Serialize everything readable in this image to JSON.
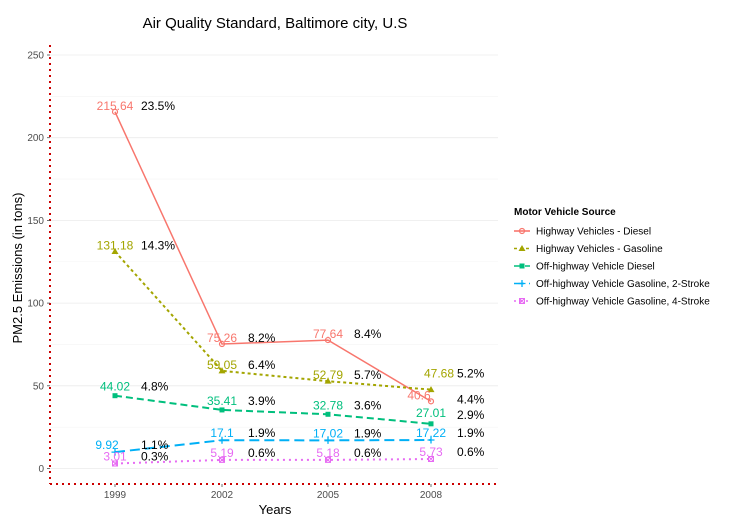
{
  "chart_data": {
    "type": "line",
    "title": "Air Quality Standard, Baltimore city, U.S",
    "xlabel": "Years",
    "ylabel": "PM2.5 Emissions (in tons)",
    "ylim": [
      -10,
      262
    ],
    "yticks": [
      0,
      50,
      100,
      150,
      200,
      250
    ],
    "categories": [
      "1999",
      "2002",
      "2005",
      "2008"
    ],
    "grid": true,
    "legend_title": "Motor Vehicle Source",
    "legend_position": "right",
    "series": [
      {
        "name": "Highway Vehicles - Diesel",
        "color": "#f8766d",
        "dash": "solid",
        "marker": "circle-open",
        "values": [
          215.64,
          75.26,
          77.64,
          40.6
        ],
        "value_labels": [
          "215.64",
          "75.26",
          "77.64",
          "40.6"
        ],
        "pct_labels": [
          "23.5%",
          "8.2%",
          "8.4%",
          "4.4%"
        ]
      },
      {
        "name": "Highway Vehicles - Gasoline",
        "color": "#a3a500",
        "dash": "dotted",
        "marker": "triangle",
        "values": [
          131.18,
          59.05,
          52.79,
          47.68
        ],
        "value_labels": [
          "131.18",
          "59.05",
          "52.79",
          "47.68"
        ],
        "pct_labels": [
          "14.3%",
          "6.4%",
          "5.7%",
          "5.2%"
        ]
      },
      {
        "name": "Off-highway Vehicle Diesel",
        "color": "#00bf7d",
        "dash": "dashed",
        "marker": "square",
        "values": [
          44.02,
          35.41,
          32.78,
          27.01
        ],
        "value_labels": [
          "44.02",
          "35.41",
          "32.78",
          "27.01"
        ],
        "pct_labels": [
          "4.8%",
          "3.9%",
          "3.6%",
          "2.9%"
        ]
      },
      {
        "name": "Off-highway Vehicle Gasoline, 2-Stroke",
        "color": "#00b0f6",
        "dash": "longdash",
        "marker": "plus",
        "values": [
          9.92,
          17.1,
          17.02,
          17.22
        ],
        "value_labels": [
          "9.92",
          "17.1",
          "17.02",
          "17.22"
        ],
        "pct_labels": [
          "1.1%",
          "1.9%",
          "1.9%",
          "1.9%"
        ]
      },
      {
        "name": "Off-highway Vehicle Gasoline, 4-Stroke",
        "color": "#e76bf3",
        "dash": "dotted",
        "marker": "square-cross",
        "values": [
          3.01,
          5.19,
          5.18,
          5.73
        ],
        "value_labels": [
          "3.01",
          "5.19",
          "5.18",
          "5.73"
        ],
        "pct_labels": [
          "0.3%",
          "0.6%",
          "0.6%",
          "0.6%"
        ]
      }
    ]
  }
}
